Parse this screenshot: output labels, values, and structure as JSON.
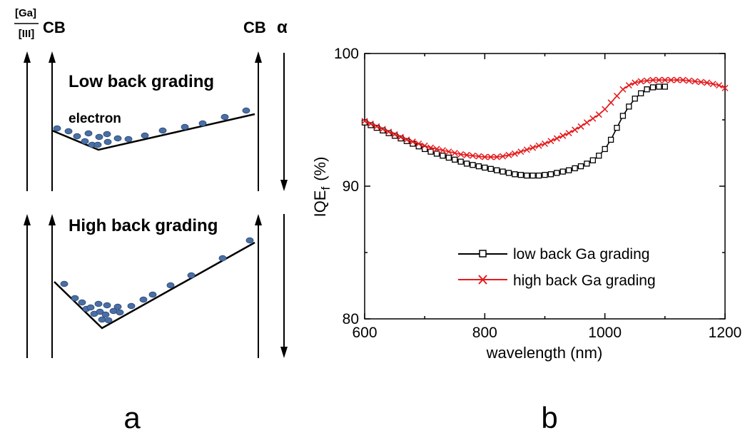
{
  "panel_a": {
    "frac_num": "[Ga]",
    "frac_den": "[III]",
    "cb_left": "CB",
    "cb_right": "CB",
    "alpha": "α",
    "low_title": "Low back grading",
    "electron_label": "electron",
    "high_title": "High back grading",
    "caption": "a"
  },
  "panel_b": {
    "caption": "b"
  },
  "colors": {
    "dot": "#4a6fa5",
    "dot_edge": "#2b4a78",
    "series_low": "#000000",
    "series_high": "#e41a1c"
  },
  "chart_data": {
    "type": "line",
    "xlabel": "wavelength (nm)",
    "ylabel": "IQE",
    "ylabel_subscript": "f",
    "ylabel_unit": "(%)",
    "xlim": [
      600,
      1200
    ],
    "ylim": [
      80,
      100
    ],
    "xticks": [
      "600",
      "800",
      "1000",
      "1200"
    ],
    "yticks": [
      "80",
      "90",
      "100"
    ],
    "legend_position": "lower-right",
    "series": [
      {
        "name": "low back Ga grading",
        "marker": "square",
        "color": "#000000",
        "x": [
          600,
          610,
          620,
          630,
          640,
          650,
          660,
          670,
          680,
          690,
          700,
          710,
          720,
          730,
          740,
          750,
          760,
          770,
          780,
          790,
          800,
          810,
          820,
          830,
          840,
          850,
          860,
          870,
          880,
          890,
          900,
          910,
          920,
          930,
          940,
          950,
          960,
          970,
          980,
          990,
          1000,
          1010,
          1020,
          1030,
          1040,
          1050,
          1060,
          1070,
          1080,
          1090,
          1100
        ],
        "y": [
          94.8,
          94.6,
          94.4,
          94.2,
          94.0,
          93.8,
          93.6,
          93.4,
          93.2,
          93.0,
          92.8,
          92.6,
          92.45,
          92.3,
          92.15,
          92.0,
          91.85,
          91.7,
          91.6,
          91.5,
          91.4,
          91.3,
          91.2,
          91.1,
          91.0,
          90.9,
          90.85,
          90.8,
          90.8,
          90.8,
          90.85,
          90.9,
          91.0,
          91.1,
          91.2,
          91.35,
          91.5,
          91.7,
          91.95,
          92.3,
          92.8,
          93.5,
          94.4,
          95.3,
          96.0,
          96.6,
          97.0,
          97.3,
          97.45,
          97.5,
          97.5
        ]
      },
      {
        "name": "high back Ga grading",
        "marker": "x",
        "color": "#e41a1c",
        "x": [
          600,
          610,
          620,
          630,
          640,
          650,
          660,
          670,
          680,
          690,
          700,
          710,
          720,
          730,
          740,
          750,
          760,
          770,
          780,
          790,
          800,
          810,
          820,
          830,
          840,
          850,
          860,
          870,
          880,
          890,
          900,
          910,
          920,
          930,
          940,
          950,
          960,
          970,
          980,
          990,
          1000,
          1010,
          1020,
          1030,
          1040,
          1050,
          1060,
          1070,
          1080,
          1090,
          1100,
          1110,
          1120,
          1130,
          1140,
          1150,
          1160,
          1170,
          1180,
          1190,
          1200
        ],
        "y": [
          94.9,
          94.7,
          94.5,
          94.3,
          94.1,
          93.9,
          93.7,
          93.5,
          93.35,
          93.2,
          93.05,
          92.9,
          92.8,
          92.7,
          92.6,
          92.5,
          92.4,
          92.35,
          92.3,
          92.25,
          92.2,
          92.2,
          92.2,
          92.25,
          92.35,
          92.45,
          92.6,
          92.75,
          92.9,
          93.05,
          93.2,
          93.4,
          93.6,
          93.8,
          94.0,
          94.25,
          94.5,
          94.8,
          95.1,
          95.4,
          95.8,
          96.3,
          96.8,
          97.3,
          97.6,
          97.8,
          97.9,
          97.95,
          98.0,
          98.0,
          98.0,
          98.0,
          98.0,
          98.0,
          97.95,
          97.9,
          97.85,
          97.8,
          97.7,
          97.6,
          97.4
        ]
      }
    ]
  }
}
